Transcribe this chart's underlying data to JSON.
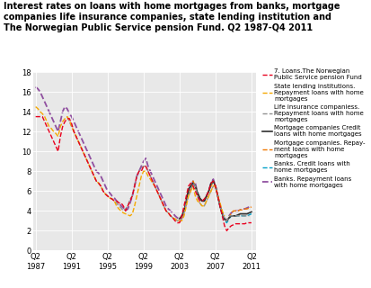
{
  "title": "Interest rates on loans with home mortgages from banks, mortgage\ncompanies life insurance companies, state lending institution and\nThe Norwegian Public Service pension Fund. Q2 1987-Q4 2011",
  "title_fontsize": 7.0,
  "ylim": [
    0,
    18
  ],
  "yticks": [
    0,
    2,
    4,
    6,
    8,
    10,
    12,
    14,
    16,
    18
  ],
  "xtick_labels": [
    "Q2\n1987",
    "Q2\n1991",
    "Q2\n1995",
    "Q2\n1999",
    "Q2\n2003",
    "Q2\n2007",
    "Q2\n2011"
  ],
  "xtick_positions": [
    0,
    16,
    32,
    48,
    64,
    80,
    96
  ],
  "background_color": "#e8e8e8",
  "series": {
    "norwegian_fund": {
      "label": "7. Loans.The Norwegian\nPublic Service pension Fund",
      "color": "#e8001e",
      "linestyle": "--",
      "linewidth": 1.0,
      "zorder": 7,
      "dashes": [
        4,
        2
      ]
    },
    "state_lending": {
      "label": "State lending institutions.\nRepayment loans with home\nmortgages",
      "color": "#f5a800",
      "linestyle": "--",
      "linewidth": 1.0,
      "zorder": 6,
      "dashes": [
        4,
        2
      ]
    },
    "life_insurance": {
      "label": "Life insurance companiess.\nRepayment loans with home\nmortgages",
      "color": "#909090",
      "linestyle": "--",
      "linewidth": 1.0,
      "zorder": 5,
      "dashes": [
        3,
        2
      ]
    },
    "mortgage_credit": {
      "label": "Mortgage companies Credit\nloans with home mortgages",
      "color": "#303030",
      "linestyle": "-",
      "linewidth": 1.2,
      "zorder": 4,
      "dashes": null
    },
    "mortgage_repay": {
      "label": "Mortgage companies. Repay-\nment loans with home\nmortgages",
      "color": "#f07800",
      "linestyle": "--",
      "linewidth": 1.0,
      "zorder": 3,
      "dashes": [
        4,
        2
      ]
    },
    "banks_credit": {
      "label": "Banks. Credit loans with\nhome mortgages",
      "color": "#00a0c8",
      "linestyle": "--",
      "linewidth": 1.0,
      "zorder": 2,
      "dashes": [
        4,
        2
      ]
    },
    "banks_repay": {
      "label": "Banks. Repayment loans\nwith home mortgages",
      "color": "#9050a0",
      "linestyle": "--",
      "linewidth": 1.3,
      "zorder": 1,
      "dashes": [
        4,
        2
      ]
    }
  },
  "data": {
    "norwegian_fund": [
      13.5,
      13.5,
      13.5,
      13.5,
      13.0,
      12.5,
      12.0,
      11.5,
      11.0,
      10.5,
      10.0,
      11.5,
      12.5,
      13.0,
      13.3,
      13.3,
      12.8,
      12.0,
      11.5,
      11.0,
      10.5,
      10.0,
      9.5,
      9.0,
      8.5,
      8.0,
      7.5,
      7.0,
      6.8,
      6.5,
      6.0,
      5.7,
      5.5,
      5.3,
      5.2,
      5.0,
      5.0,
      4.8,
      4.8,
      4.5,
      4.0,
      4.5,
      5.0,
      5.5,
      6.5,
      7.5,
      8.0,
      8.0,
      8.5,
      8.5,
      8.0,
      7.5,
      7.0,
      6.5,
      6.0,
      5.5,
      5.0,
      4.5,
      4.0,
      3.8,
      3.5,
      3.3,
      3.0,
      2.8,
      2.8,
      3.5,
      4.5,
      5.5,
      6.5,
      6.8,
      6.5,
      6.0,
      5.5,
      5.0,
      5.0,
      5.2,
      5.5,
      6.0,
      6.8,
      7.0,
      6.5,
      5.5,
      4.5,
      3.5,
      2.5,
      2.0,
      2.3,
      2.5,
      2.6,
      2.7,
      2.7,
      2.7,
      2.7,
      2.7,
      2.8,
      2.8,
      2.8
    ],
    "state_lending": [
      14.5,
      14.3,
      14.0,
      13.8,
      13.5,
      13.0,
      12.5,
      12.3,
      12.0,
      11.8,
      11.5,
      12.5,
      13.0,
      13.3,
      13.5,
      13.2,
      12.5,
      12.0,
      11.5,
      11.0,
      10.5,
      10.0,
      9.5,
      9.0,
      8.5,
      8.0,
      7.5,
      7.0,
      6.8,
      6.5,
      6.0,
      5.7,
      5.5,
      5.3,
      5.2,
      5.0,
      4.5,
      4.2,
      4.0,
      3.8,
      3.7,
      3.6,
      3.5,
      3.7,
      4.5,
      5.5,
      6.5,
      7.5,
      8.0,
      8.0,
      7.5,
      7.2,
      6.8,
      6.5,
      6.0,
      5.5,
      5.0,
      4.5,
      4.0,
      3.8,
      3.5,
      3.3,
      3.2,
      3.0,
      3.0,
      3.0,
      3.5,
      4.5,
      5.5,
      6.0,
      6.5,
      5.5,
      5.0,
      4.8,
      4.5,
      4.5,
      5.0,
      5.5,
      6.0,
      6.5,
      6.5,
      5.5,
      4.8,
      4.0,
      3.5,
      null,
      null,
      null,
      null,
      null,
      null,
      null,
      null,
      null,
      null,
      null,
      null,
      null
    ],
    "life_insurance": [
      null,
      null,
      null,
      null,
      null,
      null,
      null,
      null,
      null,
      null,
      null,
      null,
      null,
      null,
      13.5,
      13.0,
      12.5,
      12.0,
      11.5,
      11.0,
      10.5,
      10.0,
      9.5,
      9.0,
      8.5,
      8.0,
      7.5,
      7.0,
      6.8,
      6.5,
      6.0,
      5.7,
      5.5,
      5.3,
      5.2,
      5.0,
      4.8,
      4.5,
      4.3,
      4.0,
      4.2,
      4.5,
      5.2,
      5.5,
      6.5,
      7.5,
      8.0,
      8.3,
      8.5,
      8.5,
      8.0,
      7.5,
      7.0,
      6.5,
      6.0,
      5.5,
      5.0,
      4.5,
      4.0,
      3.8,
      3.5,
      3.3,
      3.2,
      3.0,
      3.0,
      3.2,
      3.8,
      4.8,
      5.5,
      6.0,
      6.8,
      6.5,
      5.5,
      4.8,
      4.5,
      4.5,
      5.0,
      5.5,
      6.0,
      6.5,
      6.5,
      5.5,
      4.5,
      3.8,
      3.3,
      3.0,
      3.5,
      3.5,
      3.5,
      3.5,
      3.5,
      3.5,
      3.5,
      3.5,
      3.5,
      3.5
    ],
    "mortgage_credit": [
      null,
      null,
      null,
      null,
      null,
      null,
      null,
      null,
      null,
      null,
      null,
      null,
      null,
      null,
      null,
      null,
      null,
      null,
      null,
      null,
      null,
      null,
      null,
      null,
      null,
      null,
      null,
      null,
      null,
      null,
      null,
      null,
      null,
      null,
      null,
      null,
      null,
      null,
      null,
      null,
      null,
      null,
      null,
      null,
      null,
      null,
      null,
      null,
      null,
      null,
      null,
      null,
      null,
      null,
      null,
      null,
      null,
      null,
      null,
      null,
      null,
      null,
      null,
      null,
      3.2,
      3.5,
      4.0,
      5.0,
      6.2,
      6.5,
      6.8,
      6.5,
      5.8,
      5.3,
      5.0,
      5.0,
      5.5,
      6.0,
      6.8,
      7.0,
      6.5,
      5.5,
      4.5,
      3.7,
      3.2,
      3.0,
      3.3,
      3.5,
      3.5,
      3.5,
      3.6,
      3.7,
      3.7,
      3.7,
      3.7,
      3.8,
      3.9
    ],
    "mortgage_repay": [
      null,
      null,
      null,
      null,
      null,
      null,
      null,
      null,
      null,
      null,
      null,
      null,
      null,
      null,
      null,
      null,
      null,
      null,
      null,
      null,
      null,
      null,
      null,
      null,
      null,
      null,
      null,
      null,
      null,
      null,
      null,
      null,
      null,
      null,
      null,
      null,
      null,
      null,
      null,
      null,
      null,
      null,
      null,
      null,
      null,
      null,
      null,
      null,
      null,
      null,
      null,
      null,
      null,
      null,
      null,
      null,
      null,
      null,
      null,
      null,
      null,
      null,
      null,
      null,
      3.2,
      3.5,
      4.0,
      5.0,
      6.0,
      6.5,
      7.0,
      6.5,
      5.8,
      5.2,
      5.0,
      5.0,
      5.5,
      6.0,
      6.5,
      7.0,
      6.5,
      5.5,
      4.5,
      3.7,
      3.2,
      3.0,
      3.3,
      3.8,
      4.0,
      4.0,
      4.0,
      4.1,
      4.1,
      4.2,
      4.2,
      4.3,
      4.4
    ],
    "banks_credit": [
      null,
      null,
      null,
      null,
      null,
      null,
      null,
      null,
      null,
      null,
      null,
      null,
      null,
      null,
      null,
      null,
      null,
      null,
      null,
      null,
      null,
      null,
      null,
      null,
      null,
      null,
      null,
      null,
      null,
      null,
      null,
      null,
      null,
      null,
      null,
      null,
      null,
      null,
      null,
      null,
      null,
      null,
      null,
      null,
      null,
      null,
      null,
      null,
      null,
      null,
      null,
      null,
      null,
      null,
      null,
      null,
      null,
      null,
      null,
      null,
      null,
      null,
      null,
      null,
      3.2,
      3.5,
      4.0,
      5.0,
      6.0,
      6.5,
      6.8,
      6.5,
      5.8,
      5.2,
      5.0,
      5.0,
      5.5,
      6.0,
      6.5,
      7.0,
      6.5,
      5.5,
      4.5,
      3.5,
      3.0,
      2.8,
      3.2,
      3.5,
      3.5,
      3.5,
      3.5,
      3.5,
      3.5,
      3.5,
      3.5,
      3.6,
      3.7
    ],
    "banks_repay": [
      16.5,
      16.3,
      16.0,
      15.5,
      15.0,
      14.5,
      14.0,
      13.5,
      13.0,
      12.5,
      12.0,
      13.0,
      14.0,
      14.5,
      14.3,
      13.8,
      13.5,
      13.0,
      12.5,
      12.0,
      11.5,
      11.0,
      10.5,
      10.0,
      9.5,
      9.0,
      8.5,
      8.0,
      7.8,
      7.5,
      7.0,
      6.5,
      6.0,
      5.8,
      5.5,
      5.3,
      5.0,
      4.8,
      4.5,
      4.3,
      4.0,
      4.2,
      4.8,
      5.5,
      6.5,
      7.5,
      8.0,
      8.5,
      9.0,
      9.3,
      8.5,
      8.0,
      7.5,
      7.0,
      6.5,
      6.0,
      5.5,
      5.0,
      4.5,
      4.2,
      4.0,
      3.8,
      3.5,
      3.3,
      3.2,
      3.3,
      3.8,
      4.8,
      5.8,
      6.3,
      7.0,
      6.8,
      5.8,
      5.3,
      5.0,
      5.0,
      5.5,
      6.0,
      6.8,
      7.2,
      6.5,
      5.5,
      4.5,
      3.8,
      3.2,
      3.0,
      3.5,
      3.8,
      4.0,
      4.0,
      4.0,
      4.1,
      4.2,
      4.2,
      4.3,
      4.4,
      4.5
    ]
  }
}
